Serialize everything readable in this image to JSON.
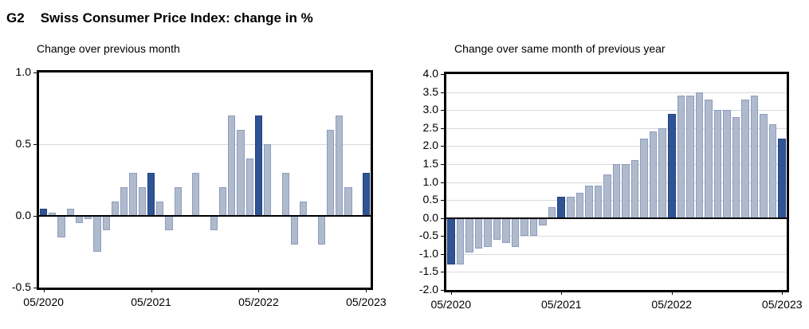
{
  "header": {
    "code": "G2",
    "title": "Swiss Consumer Price Index: change in %"
  },
  "colors": {
    "bar_light": "#AFBACD",
    "bar_light_border": "#8E9CBE",
    "bar_dark": "#2F5496",
    "bar_dark_border": "#24417D",
    "gridline": "#D9D9D9",
    "axis": "#000000"
  },
  "chart_data": [
    {
      "type": "bar",
      "title": "Change over previous month",
      "categories": [
        "05/2020",
        "06/2020",
        "07/2020",
        "08/2020",
        "09/2020",
        "10/2020",
        "11/2020",
        "12/2020",
        "01/2021",
        "02/2021",
        "03/2021",
        "04/2021",
        "05/2021",
        "06/2021",
        "07/2021",
        "08/2021",
        "09/2021",
        "10/2021",
        "11/2021",
        "12/2021",
        "01/2022",
        "02/2022",
        "03/2022",
        "04/2022",
        "05/2022",
        "06/2022",
        "07/2022",
        "08/2022",
        "09/2022",
        "10/2022",
        "11/2022",
        "12/2022",
        "01/2023",
        "02/2023",
        "03/2023",
        "04/2023",
        "05/2023"
      ],
      "values": [
        0.05,
        0.02,
        -0.15,
        0.05,
        -0.05,
        -0.02,
        -0.25,
        -0.1,
        0.1,
        0.2,
        0.3,
        0.2,
        0.3,
        0.1,
        -0.1,
        0.2,
        0.0,
        0.3,
        0.0,
        -0.1,
        0.2,
        0.7,
        0.6,
        0.4,
        0.7,
        0.5,
        0.0,
        0.3,
        -0.2,
        0.1,
        0.0,
        -0.2,
        0.6,
        0.7,
        0.2,
        0.0,
        0.3
      ],
      "highlight_indices": [
        0,
        12,
        24,
        36
      ],
      "xtick_labels": [
        "05/2020",
        "05/2021",
        "05/2022",
        "05/2023"
      ],
      "xtick_indices": [
        0,
        12,
        24,
        36
      ],
      "ytick_labels": [
        "1.0",
        "0.5",
        "0.0",
        "-0.5"
      ],
      "ylim": [
        -0.5,
        1.0
      ],
      "grid_step": 0.5,
      "grid": "horizontal"
    },
    {
      "type": "bar",
      "title": "Change over same month of previous year",
      "categories": [
        "05/2020",
        "06/2020",
        "07/2020",
        "08/2020",
        "09/2020",
        "10/2020",
        "11/2020",
        "12/2020",
        "01/2021",
        "02/2021",
        "03/2021",
        "04/2021",
        "05/2021",
        "06/2021",
        "07/2021",
        "08/2021",
        "09/2021",
        "10/2021",
        "11/2021",
        "12/2021",
        "01/2022",
        "02/2022",
        "03/2022",
        "04/2022",
        "05/2022",
        "06/2022",
        "07/2022",
        "08/2022",
        "09/2022",
        "10/2022",
        "11/2022",
        "12/2022",
        "01/2023",
        "02/2023",
        "03/2023",
        "04/2023",
        "05/2023"
      ],
      "values": [
        -1.3,
        -1.3,
        -0.95,
        -0.85,
        -0.8,
        -0.6,
        -0.7,
        -0.8,
        -0.5,
        -0.5,
        -0.2,
        0.3,
        0.6,
        0.6,
        0.7,
        0.9,
        0.9,
        1.2,
        1.5,
        1.5,
        1.6,
        2.2,
        2.4,
        2.5,
        2.9,
        3.4,
        3.4,
        3.5,
        3.3,
        3.0,
        3.0,
        2.8,
        3.3,
        3.4,
        2.9,
        2.6,
        2.2
      ],
      "highlight_indices": [
        0,
        12,
        24,
        36
      ],
      "xtick_labels": [
        "05/2020",
        "05/2021",
        "05/2022",
        "05/2023"
      ],
      "xtick_indices": [
        0,
        12,
        24,
        36
      ],
      "ytick_labels": [
        "4.0",
        "3.5",
        "3.0",
        "2.5",
        "2.0",
        "1.5",
        "1.0",
        "0.5",
        "0.0",
        "-0.5",
        "-1.0",
        "-1.5",
        "-2.0"
      ],
      "ylim": [
        -2.0,
        4.0
      ],
      "grid_step": 0.5,
      "grid": "horizontal"
    }
  ]
}
